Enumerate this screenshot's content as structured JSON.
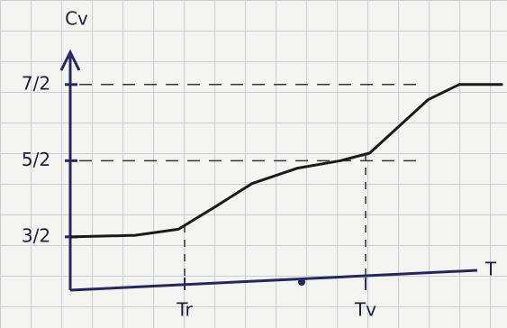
{
  "chart_data": {
    "type": "line",
    "title": "Cv",
    "x_label": "T",
    "x": [
      0,
      1.56,
      2.6,
      3.5,
      4.37,
      5.45,
      6.5,
      7.2,
      7.8,
      8.6,
      9.35,
      10.4
    ],
    "series": [
      {
        "color": "#1a1a1a",
        "values": [
          1.5,
          1.52,
          1.6,
          1.9,
          2.2,
          2.4,
          2.5,
          2.6,
          2.9,
          3.3,
          3.5,
          3.5
        ]
      }
    ],
    "xlim": [
      0,
      10.5
    ],
    "ylim": [
      0.8,
      3.9
    ],
    "xticks": [
      {
        "value": 2.75,
        "label": "Tr"
      },
      {
        "value": 7.1,
        "label": "Tv"
      }
    ],
    "yticks": [
      {
        "value": 1.5,
        "label": "3/2"
      },
      {
        "value": 2.5,
        "label": "5/2"
      },
      {
        "value": 3.5,
        "label": "7/2"
      }
    ],
    "grid": true
  }
}
